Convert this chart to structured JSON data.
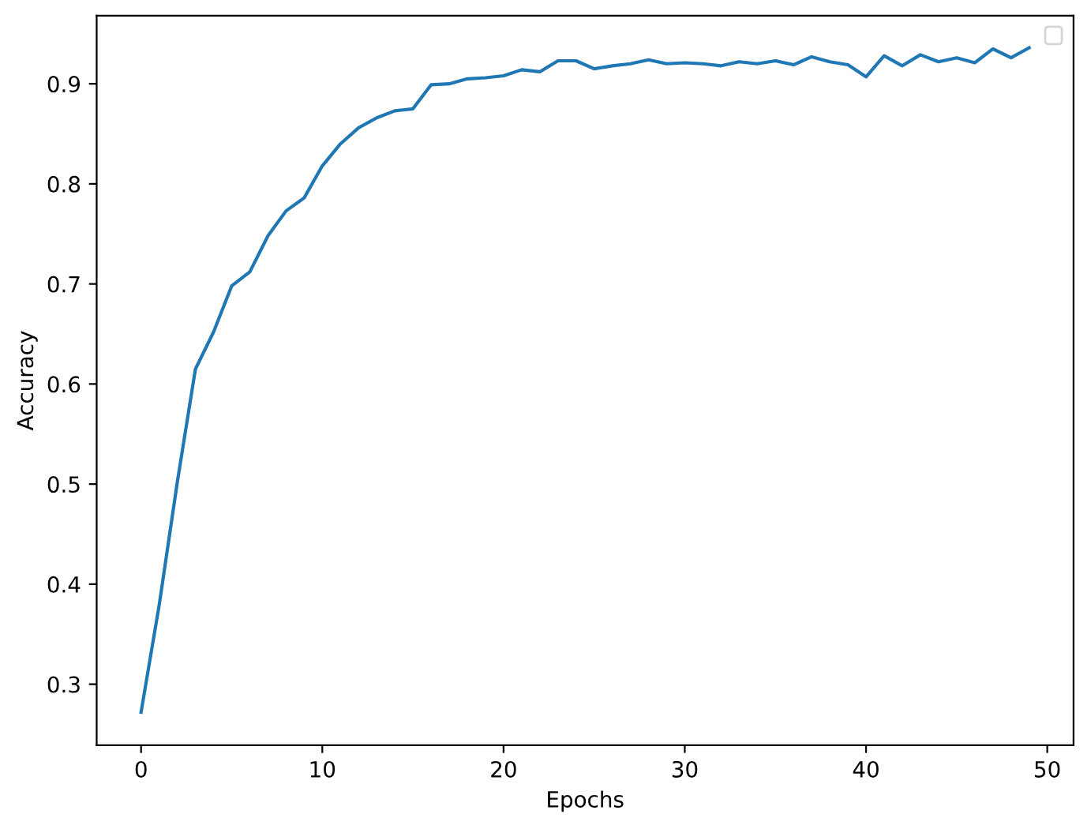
{
  "chart_data": {
    "type": "line",
    "xlabel": "Epochs",
    "ylabel": "Accuracy",
    "x": [
      0,
      1,
      2,
      3,
      4,
      5,
      6,
      7,
      8,
      9,
      10,
      11,
      12,
      13,
      14,
      15,
      16,
      17,
      18,
      19,
      20,
      21,
      22,
      23,
      24,
      25,
      26,
      27,
      28,
      29,
      30,
      31,
      32,
      33,
      34,
      35,
      36,
      37,
      38,
      39,
      40,
      41,
      42,
      43,
      44,
      45,
      46,
      47,
      48,
      49
    ],
    "series": [
      {
        "color": "#1f77b4",
        "values": [
          0.272,
          0.379,
          0.502,
          0.615,
          0.652,
          0.698,
          0.712,
          0.748,
          0.773,
          0.786,
          0.818,
          0.84,
          0.856,
          0.866,
          0.873,
          0.875,
          0.899,
          0.9,
          0.905,
          0.906,
          0.908,
          0.914,
          0.912,
          0.923,
          0.923,
          0.915,
          0.918,
          0.92,
          0.924,
          0.92,
          0.921,
          0.92,
          0.918,
          0.922,
          0.92,
          0.923,
          0.919,
          0.927,
          0.922,
          0.919,
          0.907,
          0.928,
          0.918,
          0.929,
          0.922,
          0.926,
          0.921,
          0.935,
          0.926,
          0.936
        ]
      }
    ],
    "xlim": [
      -2.45,
      51.45
    ],
    "ylim": [
      0.239,
      0.968
    ],
    "xticks": [
      0,
      10,
      20,
      30,
      40,
      50
    ],
    "yticks": [
      0.3,
      0.4,
      0.5,
      0.6,
      0.7,
      0.8,
      0.9
    ],
    "grid": false,
    "marker": "none",
    "line_style": "solid"
  }
}
